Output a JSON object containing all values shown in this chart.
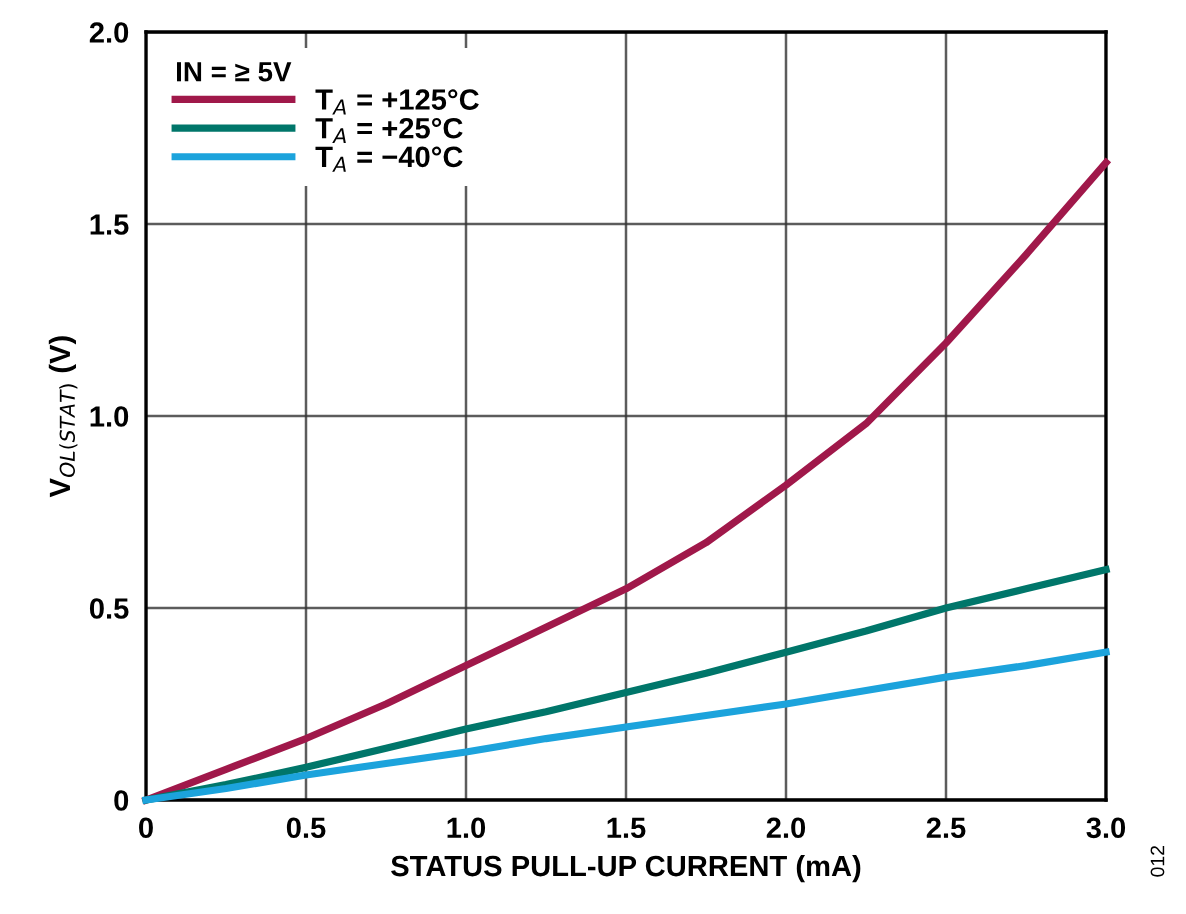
{
  "chart_data": {
    "type": "line",
    "xlabel": "STATUS PULL-UP CURRENT (mA)",
    "ylabel": "V$_{OL(STAT)}$ (V)",
    "legend_title": "IN = ≥ 5V",
    "legend": "top left",
    "grid": true,
    "marker": "none",
    "line_style": "solid",
    "x": [
      0,
      0.25,
      0.5,
      0.75,
      1.0,
      1.25,
      1.5,
      1.75,
      2.0,
      2.25,
      2.5,
      2.75,
      3.0
    ],
    "series": [
      {
        "name": "T$_{A}$ = +125°C",
        "color": "#a0184a",
        "values": [
          0,
          0.08,
          0.16,
          0.25,
          0.35,
          0.45,
          0.55,
          0.67,
          0.82,
          0.98,
          1.19,
          1.42,
          1.66
        ]
      },
      {
        "name": "T$_{A}$ = +25°C",
        "color": "#00766a",
        "values": [
          0,
          0.04,
          0.085,
          0.135,
          0.185,
          0.23,
          0.28,
          0.33,
          0.385,
          0.44,
          0.5,
          0.55,
          0.6
        ]
      },
      {
        "name": "T$_{A}$ = −40°C",
        "color": "#1ca3dc",
        "values": [
          0,
          0.03,
          0.065,
          0.095,
          0.125,
          0.16,
          0.19,
          0.22,
          0.25,
          0.285,
          0.32,
          0.35,
          0.385
        ]
      }
    ],
    "xlim": [
      0,
      3
    ],
    "ylim": [
      0,
      2
    ],
    "xticks": [
      0,
      0.5,
      {
        "value": 1,
        "label": "1.0"
      },
      1.5,
      {
        "value": 2,
        "label": "2.0"
      },
      2.5,
      {
        "value": 3,
        "label": "3.0"
      }
    ],
    "yticks": [
      0,
      0.5,
      {
        "value": 1,
        "label": "1.0"
      },
      1.5,
      {
        "value": 2,
        "label": "2.0"
      }
    ],
    "annotations": [
      "012"
    ]
  }
}
